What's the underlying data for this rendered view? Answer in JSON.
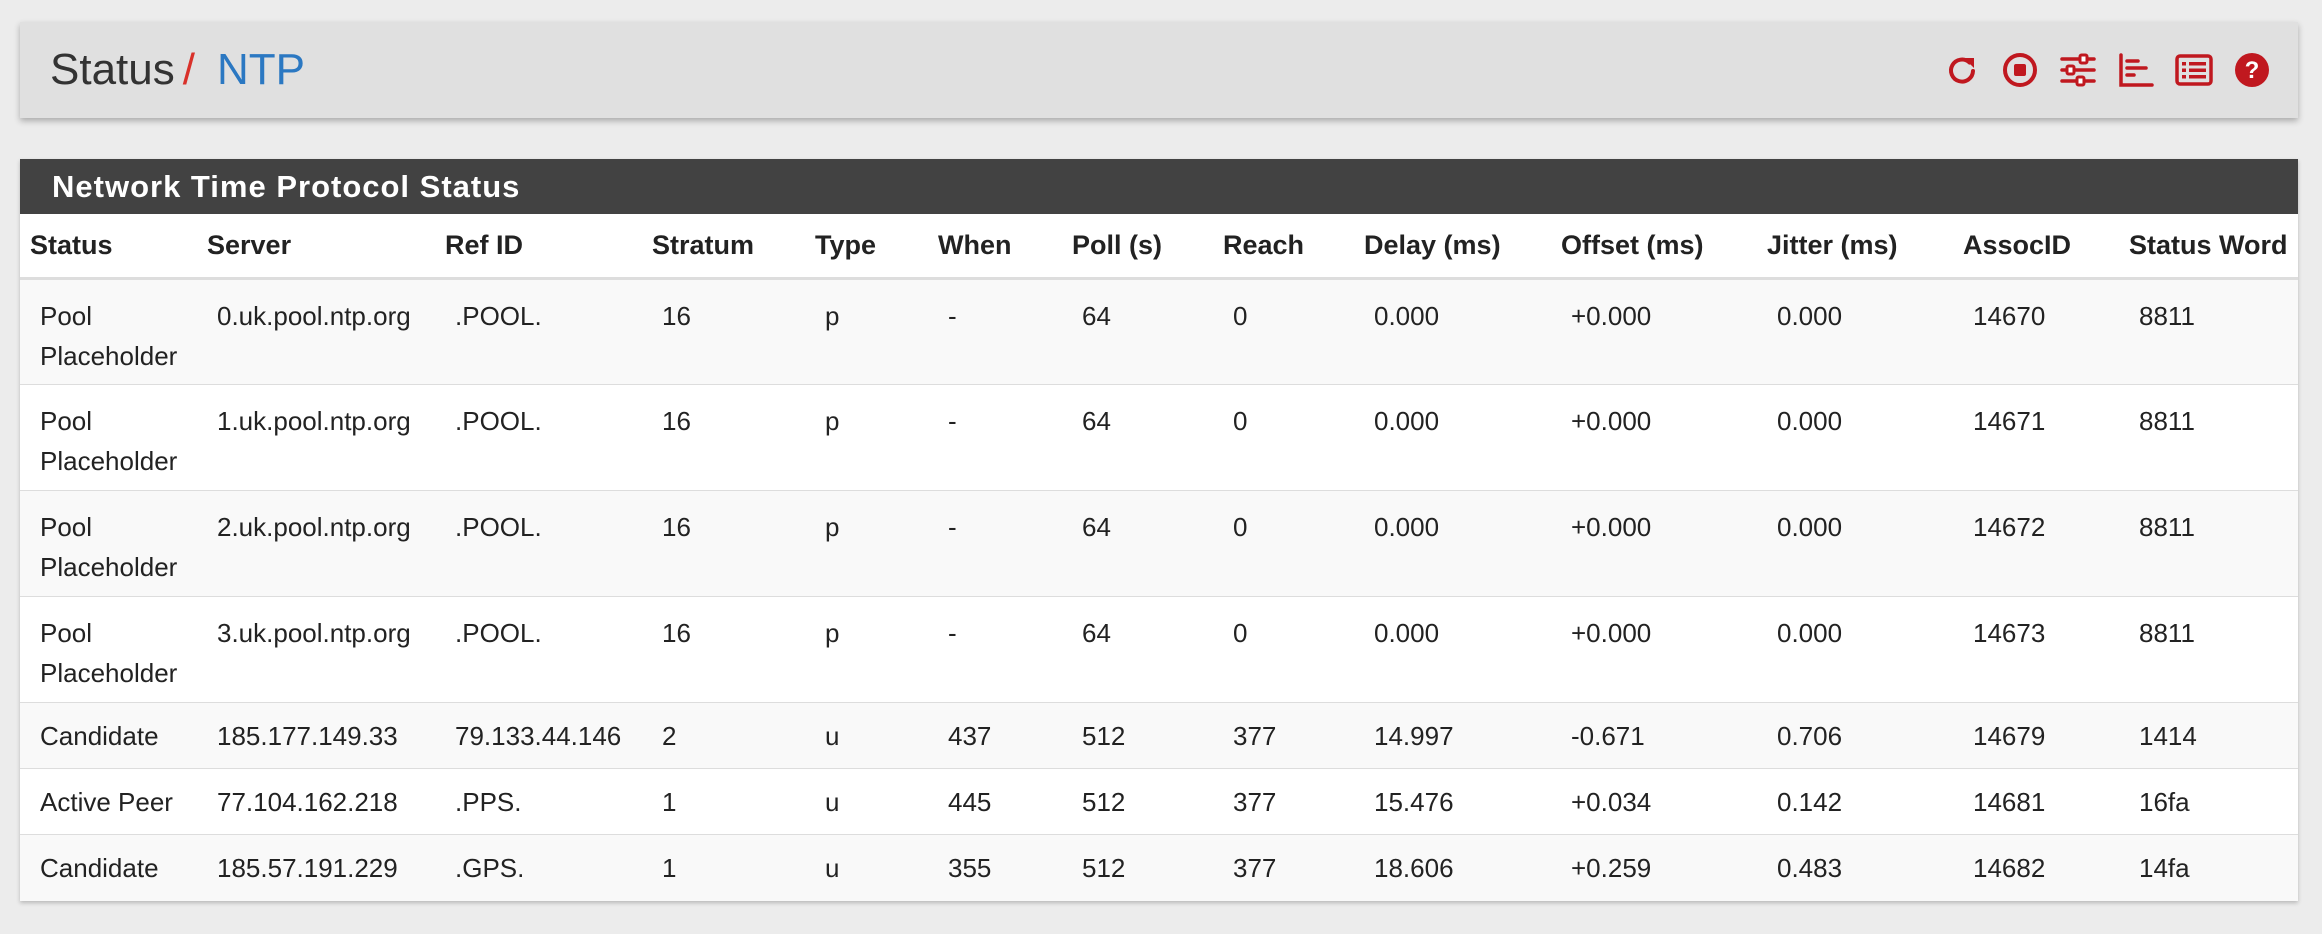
{
  "breadcrumb": {
    "root": "Status",
    "separator": "/",
    "current": "NTP"
  },
  "header_icons": [
    "reload-icon",
    "stop-icon",
    "settings-sliders-icon",
    "chart-icon",
    "list-icon",
    "help-icon"
  ],
  "colors": {
    "accent_red": "#c0181f",
    "link_blue": "#2b78c2",
    "panel_heading": "#424242"
  },
  "panel": {
    "title": "Network Time Protocol Status",
    "columns": [
      "Status",
      "Server",
      "Ref ID",
      "Stratum",
      "Type",
      "When",
      "Poll (s)",
      "Reach",
      "Delay (ms)",
      "Offset (ms)",
      "Jitter (ms)",
      "AssocID",
      "Status Word"
    ],
    "rows": [
      [
        "Pool Placeholder",
        "0.uk.pool.ntp.org",
        ".POOL.",
        "16",
        "p",
        "-",
        "64",
        "0",
        "0.000",
        "+0.000",
        "0.000",
        "14670",
        "8811"
      ],
      [
        "Pool Placeholder",
        "1.uk.pool.ntp.org",
        ".POOL.",
        "16",
        "p",
        "-",
        "64",
        "0",
        "0.000",
        "+0.000",
        "0.000",
        "14671",
        "8811"
      ],
      [
        "Pool Placeholder",
        "2.uk.pool.ntp.org",
        ".POOL.",
        "16",
        "p",
        "-",
        "64",
        "0",
        "0.000",
        "+0.000",
        "0.000",
        "14672",
        "8811"
      ],
      [
        "Pool Placeholder",
        "3.uk.pool.ntp.org",
        ".POOL.",
        "16",
        "p",
        "-",
        "64",
        "0",
        "0.000",
        "+0.000",
        "0.000",
        "14673",
        "8811"
      ],
      [
        "Candidate",
        "185.177.149.33",
        "79.133.44.146",
        "2",
        "u",
        "437",
        "512",
        "377",
        "14.997",
        "-0.671",
        "0.706",
        "14679",
        "1414"
      ],
      [
        "Active Peer",
        "77.104.162.218",
        ".PPS.",
        "1",
        "u",
        "445",
        "512",
        "377",
        "15.476",
        "+0.034",
        "0.142",
        "14681",
        "16fa"
      ],
      [
        "Candidate",
        "185.57.191.229",
        ".GPS.",
        "1",
        "u",
        "355",
        "512",
        "377",
        "18.606",
        "+0.259",
        "0.483",
        "14682",
        "14fa"
      ]
    ]
  }
}
